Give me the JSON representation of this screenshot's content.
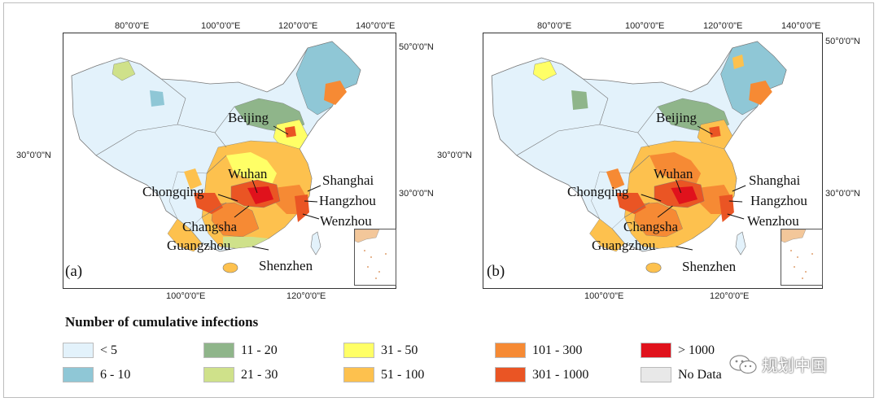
{
  "panel_a": {
    "label": "(a)",
    "top_lon_labels": [
      "80°0'0\"E",
      "100°0'0\"E",
      "120°0'0\"E",
      "140°0'0\"E"
    ],
    "bottom_lon_labels": [
      "100°0'0\"E",
      "120°0'0\"E"
    ],
    "left_lat_label": "30°0'0\"N",
    "right_lat_labels": [
      "50°0'0\"N",
      "30°0'0\"N"
    ]
  },
  "panel_b": {
    "label": "(b)",
    "top_lon_labels": [
      "80°0'0\"E",
      "100°0'0\"E",
      "120°0'0\"E",
      "140°0'0\"E"
    ],
    "bottom_lon_labels": [
      "100°0'0\"E",
      "120°0'0\"E"
    ],
    "left_lat_label": "30°0'0\"N",
    "right_lat_labels": [
      "50°0'0\"N",
      "30°0'0\"N"
    ]
  },
  "cities": {
    "beijing": "Beijing",
    "wuhan": "Wuhan",
    "shanghai": "Shanghai",
    "chongqing": "Chongqing",
    "hangzhou": "Hangzhou",
    "changsha": "Changsha",
    "wenzhou": "Wenzhou",
    "guangzhou": "Guangzhou",
    "shenzhen": "Shenzhen"
  },
  "legend": {
    "title": "Number of cumulative infections",
    "items": [
      {
        "label": "< 5",
        "color": "#e3f2fb"
      },
      {
        "label": "6 - 10",
        "color": "#8fc7d6"
      },
      {
        "label": "11 - 20",
        "color": "#8fb58a"
      },
      {
        "label": "21 - 30",
        "color": "#cfe18a"
      },
      {
        "label": "31 - 50",
        "color": "#ffff66"
      },
      {
        "label": "51 - 100",
        "color": "#fdc14e"
      },
      {
        "label": "101 - 300",
        "color": "#f68a34"
      },
      {
        "label": "301 - 1000",
        "color": "#ea5524"
      },
      {
        "label": "> 1000",
        "color": "#e0121c"
      },
      {
        "label": "No Data",
        "color": "#e8e8e8"
      }
    ]
  },
  "watermark": "规划中国"
}
